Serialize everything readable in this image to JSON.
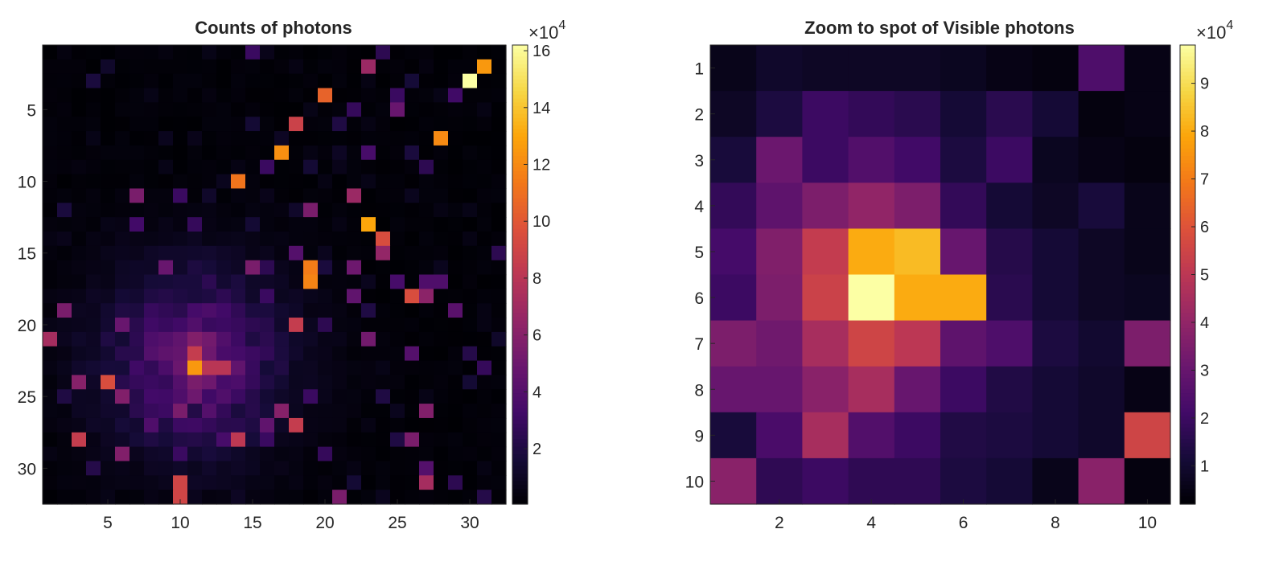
{
  "chart_data": [
    {
      "type": "heatmap",
      "title": "Counts of photons",
      "xlabel": "",
      "ylabel": "",
      "rows": 32,
      "cols": 32,
      "xticks": [
        5,
        10,
        15,
        20,
        25,
        30
      ],
      "yticks": [
        5,
        10,
        15,
        20,
        25,
        30
      ],
      "colormap": "inferno",
      "clim": [
        500,
        162000
      ],
      "colorbar": {
        "ticks": [
          2,
          4,
          6,
          8,
          10,
          12,
          14,
          16
        ],
        "multiplier_base": "10",
        "multiplier_exp": "4",
        "multiplier_prefix": "×"
      },
      "background": {
        "level": 1200,
        "min": 300,
        "max": 3000
      },
      "blob": {
        "center_row": 22.5,
        "center_col": 11,
        "peak": 38000,
        "sigma": 4.5
      },
      "cells": [
        [
          1,
          2,
          4000
        ],
        [
          1,
          15,
          30000
        ],
        [
          1,
          16,
          7000
        ],
        [
          1,
          24,
          25000
        ],
        [
          1,
          12,
          6000
        ],
        [
          1,
          9,
          4000
        ],
        [
          2,
          5,
          12000
        ],
        [
          2,
          23,
          68000
        ],
        [
          2,
          31,
          125000
        ],
        [
          2,
          27,
          4000
        ],
        [
          2,
          18,
          5000
        ],
        [
          3,
          30,
          162000
        ],
        [
          3,
          4,
          18000
        ],
        [
          3,
          26,
          16000
        ],
        [
          3,
          33,
          5000
        ],
        [
          3,
          23,
          5000
        ],
        [
          4,
          20,
          105000
        ],
        [
          4,
          25,
          30000
        ],
        [
          4,
          29,
          32000
        ],
        [
          4,
          28,
          6000
        ],
        [
          4,
          8,
          6000
        ],
        [
          4,
          12,
          4000
        ],
        [
          5,
          22,
          28000
        ],
        [
          5,
          25,
          48000
        ],
        [
          5,
          31,
          5000
        ],
        [
          5,
          19,
          6000
        ],
        [
          6,
          18,
          88000
        ],
        [
          6,
          15,
          15000
        ],
        [
          6,
          21,
          20000
        ],
        [
          6,
          23,
          5000
        ],
        [
          6,
          12,
          3000
        ],
        [
          7,
          28,
          120000
        ],
        [
          7,
          17,
          10000
        ],
        [
          7,
          9,
          8000
        ],
        [
          7,
          4,
          6000
        ],
        [
          7,
          11,
          7000
        ],
        [
          8,
          17,
          122000
        ],
        [
          8,
          23,
          35000
        ],
        [
          8,
          26,
          18000
        ],
        [
          8,
          21,
          10000
        ],
        [
          8,
          19,
          5000
        ],
        [
          9,
          16,
          30000
        ],
        [
          9,
          19,
          15000
        ],
        [
          9,
          27,
          25000
        ],
        [
          9,
          21,
          7000
        ],
        [
          9,
          9,
          6000
        ],
        [
          9,
          14,
          5000
        ],
        [
          9,
          3,
          4000
        ],
        [
          10,
          14,
          112000
        ],
        [
          10,
          13,
          8000
        ],
        [
          10,
          20,
          5000
        ],
        [
          10,
          23,
          6000
        ],
        [
          11,
          7,
          55000
        ],
        [
          11,
          10,
          30000
        ],
        [
          11,
          22,
          68000
        ],
        [
          11,
          12,
          12000
        ],
        [
          11,
          16,
          7000
        ],
        [
          11,
          26,
          8000
        ],
        [
          11,
          28,
          3000
        ],
        [
          12,
          2,
          18000
        ],
        [
          12,
          19,
          55000
        ],
        [
          12,
          18,
          12000
        ],
        [
          12,
          28,
          5000
        ],
        [
          12,
          30,
          6000
        ],
        [
          13,
          23,
          130000
        ],
        [
          13,
          7,
          33000
        ],
        [
          13,
          11,
          28000
        ],
        [
          13,
          15,
          15000
        ],
        [
          13,
          5,
          6000
        ],
        [
          13,
          21,
          5000
        ],
        [
          14,
          24,
          95000
        ],
        [
          14,
          14,
          4000
        ],
        [
          14,
          30,
          5000
        ],
        [
          14,
          1,
          5000
        ],
        [
          14,
          2,
          7000
        ],
        [
          15,
          24,
          65000
        ],
        [
          15,
          9,
          12000
        ],
        [
          15,
          15,
          6000
        ],
        [
          15,
          32,
          25000
        ],
        [
          15,
          18,
          40000
        ],
        [
          15,
          20,
          8000
        ],
        [
          16,
          19,
          115000
        ],
        [
          16,
          15,
          55000
        ],
        [
          16,
          16,
          25000
        ],
        [
          16,
          9,
          48000
        ],
        [
          16,
          22,
          50000
        ],
        [
          16,
          20,
          18000
        ],
        [
          16,
          28,
          8000
        ],
        [
          17,
          19,
          118000
        ],
        [
          17,
          25,
          35000
        ],
        [
          17,
          28,
          38000
        ],
        [
          17,
          27,
          38000
        ],
        [
          17,
          8,
          8000
        ],
        [
          17,
          12,
          10000
        ],
        [
          17,
          23,
          8000
        ],
        [
          17,
          11,
          6000
        ],
        [
          18,
          26,
          95000
        ],
        [
          18,
          22,
          45000
        ],
        [
          18,
          16,
          30000
        ],
        [
          18,
          27,
          62000
        ],
        [
          18,
          4,
          10000
        ],
        [
          18,
          14,
          6000
        ],
        [
          19,
          2,
          55000
        ],
        [
          19,
          29,
          42000
        ],
        [
          19,
          23,
          20000
        ],
        [
          19,
          11,
          10000
        ],
        [
          19,
          31,
          5000
        ],
        [
          20,
          18,
          85000
        ],
        [
          20,
          20,
          25000
        ],
        [
          20,
          1,
          6000
        ],
        [
          20,
          15,
          12000
        ],
        [
          20,
          31,
          5000
        ],
        [
          20,
          6,
          48000
        ],
        [
          21,
          1,
          72000
        ],
        [
          21,
          11,
          58000
        ],
        [
          21,
          12,
          52000
        ],
        [
          21,
          9,
          40000
        ],
        [
          21,
          10,
          45000
        ],
        [
          21,
          23,
          52000
        ],
        [
          21,
          32,
          12000
        ],
        [
          22,
          11,
          85000
        ],
        [
          22,
          10,
          40000
        ],
        [
          22,
          12,
          50000
        ],
        [
          22,
          14,
          30000
        ],
        [
          22,
          26,
          40000
        ],
        [
          22,
          30,
          22000
        ],
        [
          22,
          18,
          8000
        ],
        [
          23,
          11,
          125000
        ],
        [
          23,
          12,
          80000
        ],
        [
          23,
          13,
          80000
        ],
        [
          23,
          14,
          45000
        ],
        [
          23,
          10,
          35000
        ],
        [
          23,
          31,
          28000
        ],
        [
          23,
          24,
          6000
        ],
        [
          24,
          3,
          60000
        ],
        [
          24,
          5,
          95000
        ],
        [
          24,
          8,
          30000
        ],
        [
          24,
          10,
          40000
        ],
        [
          24,
          11,
          55000
        ],
        [
          24,
          12,
          50000
        ],
        [
          24,
          13,
          35000
        ],
        [
          24,
          30,
          15000
        ],
        [
          25,
          6,
          58000
        ],
        [
          25,
          9,
          32000
        ],
        [
          25,
          11,
          50000
        ],
        [
          25,
          19,
          30000
        ],
        [
          25,
          24,
          20000
        ],
        [
          25,
          2,
          20000
        ],
        [
          25,
          27,
          6000
        ],
        [
          26,
          10,
          55000
        ],
        [
          26,
          12,
          40000
        ],
        [
          26,
          17,
          60000
        ],
        [
          26,
          27,
          58000
        ],
        [
          26,
          8,
          20000
        ],
        [
          26,
          25,
          8000
        ],
        [
          27,
          8,
          38000
        ],
        [
          27,
          16,
          45000
        ],
        [
          27,
          18,
          85000
        ],
        [
          27,
          23,
          5000
        ],
        [
          27,
          10,
          30000
        ],
        [
          28,
          3,
          85000
        ],
        [
          28,
          14,
          82000
        ],
        [
          28,
          26,
          55000
        ],
        [
          28,
          13,
          35000
        ],
        [
          28,
          16,
          30000
        ],
        [
          28,
          25,
          20000
        ],
        [
          28,
          8,
          20000
        ],
        [
          29,
          6,
          58000
        ],
        [
          29,
          10,
          30000
        ],
        [
          29,
          20,
          28000
        ],
        [
          29,
          1,
          5000
        ],
        [
          30,
          4,
          22000
        ],
        [
          30,
          27,
          40000
        ],
        [
          30,
          22,
          5000
        ],
        [
          30,
          31,
          5000
        ],
        [
          31,
          10,
          90000
        ],
        [
          31,
          27,
          72000
        ],
        [
          31,
          29,
          25000
        ],
        [
          31,
          14,
          8000
        ],
        [
          31,
          22,
          15000
        ],
        [
          31,
          16,
          5000
        ],
        [
          32,
          10,
          90000
        ],
        [
          32,
          21,
          55000
        ],
        [
          32,
          31,
          22000
        ],
        [
          32,
          14,
          10000
        ],
        [
          32,
          5,
          6000
        ],
        [
          32,
          24,
          8000
        ]
      ]
    },
    {
      "type": "heatmap",
      "title": "Zoom to spot of Visible photons",
      "xlabel": "",
      "ylabel": "",
      "rows": 10,
      "cols": 10,
      "xticks": [
        2,
        4,
        6,
        8,
        10
      ],
      "yticks": [
        1,
        2,
        3,
        4,
        5,
        6,
        7,
        8,
        9,
        10
      ],
      "colormap": "inferno",
      "clim": [
        2000,
        98000
      ],
      "colorbar": {
        "ticks": [
          1,
          2,
          3,
          4,
          5,
          6,
          7,
          8,
          9
        ],
        "multiplier_base": "10",
        "multiplier_exp": "4",
        "multiplier_prefix": "×"
      },
      "values": [
        [
          6000,
          9000,
          8000,
          8000,
          8000,
          7000,
          5000,
          4000,
          24000,
          5000
        ],
        [
          8000,
          13000,
          20000,
          18000,
          16000,
          11000,
          16000,
          11000,
          4000,
          5000
        ],
        [
          12000,
          31000,
          20000,
          25000,
          21000,
          13000,
          20000,
          7000,
          5000,
          4000
        ],
        [
          18000,
          28000,
          35000,
          40000,
          35000,
          18000,
          11000,
          8000,
          12000,
          6000
        ],
        [
          22000,
          36000,
          52000,
          80000,
          83000,
          30000,
          15000,
          11000,
          8000,
          6000
        ],
        [
          20000,
          35000,
          54000,
          98000,
          80000,
          80000,
          16000,
          11000,
          8000,
          7000
        ],
        [
          35000,
          32000,
          45000,
          55000,
          50000,
          28000,
          24000,
          13000,
          10000,
          35000
        ],
        [
          30000,
          30000,
          38000,
          45000,
          30000,
          20000,
          14000,
          11000,
          9000,
          5000
        ],
        [
          12000,
          23000,
          45000,
          25000,
          20000,
          14000,
          13000,
          11000,
          9000,
          55000
        ],
        [
          38000,
          17000,
          20000,
          17000,
          17000,
          13000,
          11000,
          6000,
          38000,
          4000
        ]
      ]
    }
  ]
}
